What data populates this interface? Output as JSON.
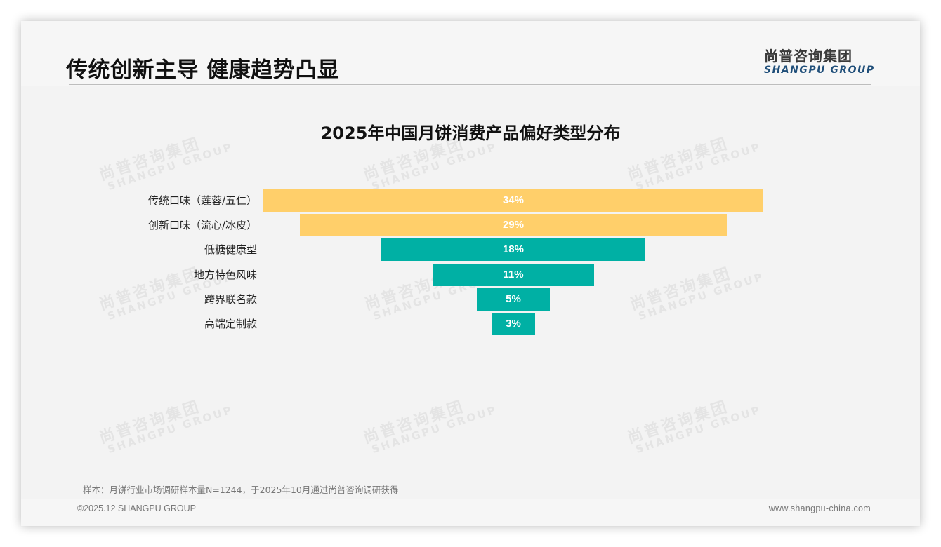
{
  "header": {
    "title": "传统创新主导 健康趋势凸显",
    "logo_cn": "尚普咨询集团",
    "logo_en": "SHANGPU GROUP"
  },
  "watermark": {
    "cn": "尚普咨询集团",
    "en": "SHANGPU GROUP"
  },
  "chart_data": {
    "type": "bar",
    "subtype": "funnel (centered horizontal bars)",
    "title": "2025年中国月饼消费产品偏好类型分布",
    "xlabel": "",
    "ylabel": "",
    "categories": [
      "传统口味（莲蓉/五仁）",
      "创新口味（流心/冰皮）",
      "低糖健康型",
      "地方特色风味",
      "跨界联名款",
      "高端定制款"
    ],
    "values": [
      34,
      29,
      18,
      11,
      5,
      3
    ],
    "value_labels": [
      "34%",
      "29%",
      "18%",
      "11%",
      "5%",
      "3%"
    ],
    "unit": "%",
    "colors": [
      "#FFCF6A",
      "#FFCF6A",
      "#00B0A4",
      "#00B0A4",
      "#00B0A4",
      "#00B0A4"
    ],
    "grid": false,
    "legend": null
  },
  "colors": {
    "gold": "#FFCF6A",
    "teal": "#00B0A4",
    "logo_blue": "#1F4E79"
  },
  "footer": {
    "note": "样本：月饼行业市场调研样本量N=1244，于2025年10月通过尚普咨询调研获得",
    "copyright": "©2025.12 SHANGPU GROUP",
    "website": "www.shangpu-china.com"
  }
}
